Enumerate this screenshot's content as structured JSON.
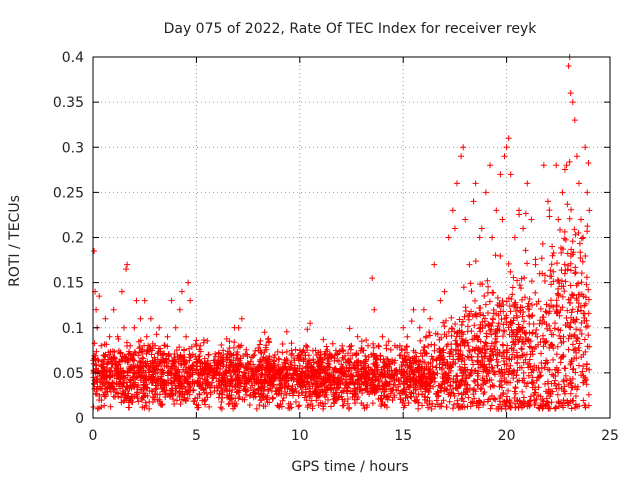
{
  "chart_data": {
    "type": "scatter",
    "title": "Day 075 of 2022, Rate Of TEC Index for receiver reyk",
    "xlabel": "GPS time / hours",
    "ylabel": "ROTI / TECUs",
    "xlim": [
      0,
      25
    ],
    "ylim": [
      0,
      0.4
    ],
    "xticks": [
      0,
      5,
      10,
      15,
      20,
      25
    ],
    "xtick_labels": [
      "0",
      "5",
      "10",
      "15",
      "20",
      "25"
    ],
    "yticks": [
      0,
      0.05,
      0.1,
      0.15,
      0.2,
      0.25,
      0.3,
      0.35,
      0.4
    ],
    "ytick_labels": [
      "0",
      "0.05",
      "0.1",
      "0.15",
      "0.2",
      "0.25",
      "0.3",
      "0.35",
      "0.4"
    ],
    "grid": true,
    "marker": "+",
    "marker_color": "#ff0000",
    "series": [
      {
        "name": "ROTI",
        "points": [
          [
            0.05,
            0.185
          ],
          [
            0.1,
            0.14
          ],
          [
            0.15,
            0.12
          ],
          [
            0.2,
            0.1
          ],
          [
            0.3,
            0.135
          ],
          [
            0.4,
            0.08
          ],
          [
            0.6,
            0.11
          ],
          [
            0.8,
            0.09
          ],
          [
            1.0,
            0.12
          ],
          [
            1.2,
            0.09
          ],
          [
            1.4,
            0.14
          ],
          [
            1.5,
            0.1
          ],
          [
            1.6,
            0.165
          ],
          [
            1.65,
            0.17
          ],
          [
            1.8,
            0.08
          ],
          [
            2.0,
            0.1
          ],
          [
            2.1,
            0.13
          ],
          [
            2.3,
            0.11
          ],
          [
            2.5,
            0.13
          ],
          [
            2.6,
            0.09
          ],
          [
            2.8,
            0.11
          ],
          [
            3.0,
            0.08
          ],
          [
            3.2,
            0.1
          ],
          [
            3.4,
            0.07
          ],
          [
            3.6,
            0.09
          ],
          [
            3.8,
            0.13
          ],
          [
            4.0,
            0.1
          ],
          [
            4.2,
            0.12
          ],
          [
            4.3,
            0.14
          ],
          [
            4.5,
            0.09
          ],
          [
            4.6,
            0.15
          ],
          [
            4.7,
            0.13
          ],
          [
            5.0,
            0.08
          ],
          [
            5.3,
            0.06
          ],
          [
            5.6,
            0.07
          ],
          [
            6.0,
            0.06
          ],
          [
            6.3,
            0.07
          ],
          [
            6.6,
            0.085
          ],
          [
            7.0,
            0.07
          ],
          [
            7.2,
            0.11
          ],
          [
            7.5,
            0.06
          ],
          [
            7.8,
            0.07
          ],
          [
            8.0,
            0.075
          ],
          [
            8.3,
            0.095
          ],
          [
            8.5,
            0.085
          ],
          [
            8.8,
            0.07
          ],
          [
            9.0,
            0.065
          ],
          [
            9.3,
            0.06
          ],
          [
            9.6,
            0.075
          ],
          [
            10.0,
            0.07
          ],
          [
            10.3,
            0.08
          ],
          [
            10.5,
            0.105
          ],
          [
            10.8,
            0.07
          ],
          [
            11.0,
            0.065
          ],
          [
            11.5,
            0.07
          ],
          [
            12.0,
            0.075
          ],
          [
            12.5,
            0.08
          ],
          [
            12.8,
            0.09
          ],
          [
            13.0,
            0.085
          ],
          [
            13.3,
            0.08
          ],
          [
            13.5,
            0.155
          ],
          [
            13.6,
            0.12
          ],
          [
            13.8,
            0.08
          ],
          [
            14.0,
            0.09
          ],
          [
            14.3,
            0.085
          ],
          [
            14.6,
            0.08
          ],
          [
            15.0,
            0.1
          ],
          [
            15.2,
            0.09
          ],
          [
            15.5,
            0.12
          ],
          [
            15.8,
            0.1
          ],
          [
            16.0,
            0.12
          ],
          [
            16.3,
            0.11
          ],
          [
            16.5,
            0.17
          ],
          [
            16.8,
            0.13
          ],
          [
            17.0,
            0.14
          ],
          [
            17.2,
            0.2
          ],
          [
            17.4,
            0.23
          ],
          [
            17.5,
            0.21
          ],
          [
            17.6,
            0.26
          ],
          [
            17.8,
            0.29
          ],
          [
            17.9,
            0.3
          ],
          [
            18.0,
            0.22
          ],
          [
            18.2,
            0.17
          ],
          [
            18.4,
            0.24
          ],
          [
            18.5,
            0.26
          ],
          [
            18.7,
            0.2
          ],
          [
            18.8,
            0.21
          ],
          [
            19.0,
            0.25
          ],
          [
            19.2,
            0.28
          ],
          [
            19.3,
            0.2
          ],
          [
            19.5,
            0.23
          ],
          [
            19.7,
            0.27
          ],
          [
            19.8,
            0.22
          ],
          [
            19.9,
            0.29
          ],
          [
            20.0,
            0.3
          ],
          [
            20.1,
            0.31
          ],
          [
            20.2,
            0.27
          ],
          [
            20.4,
            0.2
          ],
          [
            20.6,
            0.23
          ],
          [
            20.8,
            0.21
          ],
          [
            21.0,
            0.26
          ],
          [
            21.2,
            0.22
          ],
          [
            21.4,
            0.17
          ],
          [
            21.6,
            0.16
          ],
          [
            21.8,
            0.28
          ],
          [
            22.0,
            0.24
          ],
          [
            22.2,
            0.19
          ],
          [
            22.4,
            0.28
          ],
          [
            22.5,
            0.22
          ],
          [
            22.7,
            0.25
          ],
          [
            22.9,
            0.28
          ],
          [
            23.0,
            0.39
          ],
          [
            23.05,
            0.4
          ],
          [
            23.1,
            0.36
          ],
          [
            23.2,
            0.35
          ],
          [
            23.3,
            0.33
          ],
          [
            23.4,
            0.29
          ],
          [
            23.5,
            0.26
          ],
          [
            23.6,
            0.22
          ],
          [
            23.7,
            0.2
          ],
          [
            23.8,
            0.3
          ],
          [
            23.9,
            0.25
          ],
          [
            24.0,
            0.23
          ]
        ]
      }
    ]
  }
}
